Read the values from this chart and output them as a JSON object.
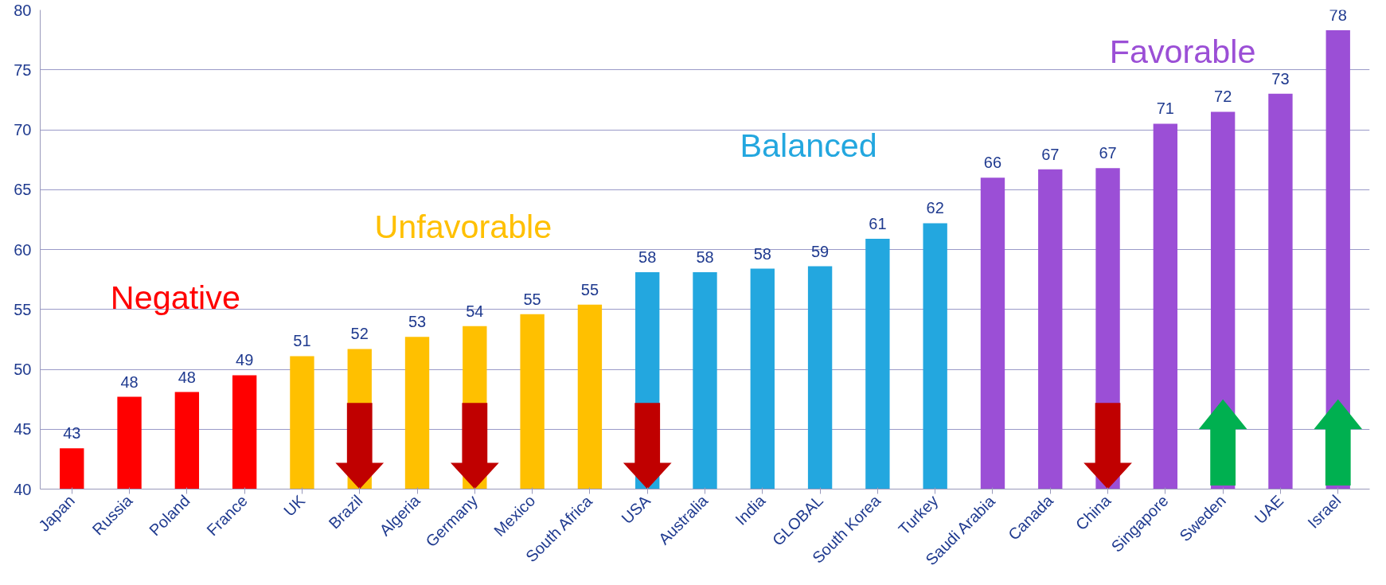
{
  "chart_data": {
    "type": "bar",
    "categories": [
      "Japan",
      "Russia",
      "Poland",
      "France",
      "UK",
      "Brazil",
      "Algeria",
      "Germany",
      "Mexico",
      "South Africa",
      "USA",
      "Australia",
      "India",
      "GLOBAL",
      "South Korea",
      "Turkey",
      "Saudi Arabia",
      "Canada",
      "China",
      "Singapore",
      "Sweden",
      "UAE",
      "Israel"
    ],
    "series": [
      {
        "name": "Negative",
        "color": "#ff0000",
        "values": [
          43.4,
          47.7,
          48.1,
          49.5,
          null,
          null,
          null,
          null,
          null,
          null,
          null,
          null,
          null,
          null,
          null,
          null,
          null,
          null,
          null,
          null,
          null,
          null,
          null
        ],
        "value_labels": [
          "43",
          "48",
          "48",
          "49",
          null,
          null,
          null,
          null,
          null,
          null,
          null,
          null,
          null,
          null,
          null,
          null,
          null,
          null,
          null,
          null,
          null,
          null,
          null
        ]
      },
      {
        "name": "Unfavorable",
        "color": "#ffc000",
        "values": [
          null,
          null,
          null,
          null,
          51.1,
          51.7,
          52.7,
          53.6,
          54.6,
          55.4,
          null,
          null,
          null,
          null,
          null,
          null,
          null,
          null,
          null,
          null,
          null,
          null,
          null
        ],
        "value_labels": [
          null,
          null,
          null,
          null,
          "51",
          "52",
          "53",
          "54",
          "55",
          "55",
          null,
          null,
          null,
          null,
          null,
          null,
          null,
          null,
          null,
          null,
          null,
          null,
          null
        ]
      },
      {
        "name": "Balanced",
        "color": "#23a7df",
        "values": [
          null,
          null,
          null,
          null,
          null,
          null,
          null,
          null,
          null,
          null,
          58.1,
          58.1,
          58.4,
          58.6,
          60.9,
          62.2,
          null,
          null,
          null,
          null,
          null,
          null,
          null
        ],
        "value_labels": [
          null,
          null,
          null,
          null,
          null,
          null,
          null,
          null,
          null,
          null,
          "58",
          "58",
          "58",
          "59",
          "61",
          "62",
          null,
          null,
          null,
          null,
          null,
          null,
          null
        ]
      },
      {
        "name": "Favorable",
        "color": "#9b4fd6",
        "values": [
          null,
          null,
          null,
          null,
          null,
          null,
          null,
          null,
          null,
          null,
          null,
          null,
          null,
          null,
          null,
          null,
          66.0,
          66.7,
          66.8,
          70.5,
          71.5,
          73.0,
          78.3
        ],
        "value_labels": [
          null,
          null,
          null,
          null,
          null,
          null,
          null,
          null,
          null,
          null,
          null,
          null,
          null,
          null,
          null,
          null,
          "66",
          "67",
          "67",
          "71",
          "72",
          "73",
          "78"
        ]
      }
    ],
    "ylim": [
      40,
      80
    ],
    "yticks": [
      40,
      45,
      50,
      55,
      60,
      65,
      70,
      75,
      80
    ],
    "grid": "y"
  }
}
